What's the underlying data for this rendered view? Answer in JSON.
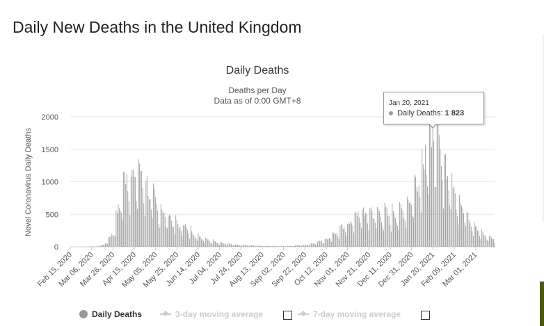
{
  "page": {
    "title": "Daily New Deaths in the United Kingdom"
  },
  "chart_data": {
    "type": "bar",
    "title": "Daily Deaths",
    "subtitle_lines": [
      "Deaths per Day",
      "Data as of 0:00 GMT+8"
    ],
    "ylabel": "Novel Coronavirus Daily Deaths",
    "xlabel": "",
    "ylim": [
      0,
      2000
    ],
    "y_ticks": [
      "0",
      "500",
      "1000",
      "1500",
      "2000"
    ],
    "grid": true,
    "color": "#999999",
    "x_tick_labels": [
      "Feb 15, 2020",
      "Mar 06, 2020",
      "Mar 26, 2020",
      "Apr 15, 2020",
      "May 05, 2020",
      "May 25, 2020",
      "Jun 14, 2020",
      "Jul 04, 2020",
      "Jul 24, 2020",
      "Aug 13, 2020",
      "Sep 02, 2020",
      "Sep 22, 2020",
      "Oct 12, 2020",
      "Nov 01, 2020",
      "Nov 21, 2020",
      "Dec 11, 2020",
      "Dec 31, 2020",
      "Jan 20, 2021",
      "Feb 09, 2021",
      "Mar 01, 2021"
    ],
    "x_start": "Feb 15, 2020",
    "x_end": "Mar 19, 2021",
    "anchors": [
      [
        "Feb 15, 2020",
        0
      ],
      [
        "Mar 01, 2020",
        0
      ],
      [
        "Mar 10, 2020",
        5
      ],
      [
        "Mar 18, 2020",
        30
      ],
      [
        "Mar 26, 2020",
        200
      ],
      [
        "Apr 01, 2020",
        600
      ],
      [
        "Apr 08, 2020",
        1050
      ],
      [
        "Apr 12, 2020",
        1000
      ],
      [
        "Apr 21, 2020",
        1100
      ],
      [
        "Apr 28, 2020",
        800
      ],
      [
        "May 05, 2020",
        650
      ],
      [
        "May 12, 2020",
        500
      ],
      [
        "May 19, 2020",
        420
      ],
      [
        "May 26, 2020",
        320
      ],
      [
        "Jun 02, 2020",
        300
      ],
      [
        "Jun 14, 2020",
        150
      ],
      [
        "Jun 25, 2020",
        100
      ],
      [
        "Jul 04, 2020",
        60
      ],
      [
        "Jul 20, 2020",
        30
      ],
      [
        "Aug 13, 2020",
        12
      ],
      [
        "Sep 02, 2020",
        8
      ],
      [
        "Sep 22, 2020",
        25
      ],
      [
        "Oct 01, 2020",
        55
      ],
      [
        "Oct 12, 2020",
        110
      ],
      [
        "Oct 22, 2020",
        220
      ],
      [
        "Nov 01, 2020",
        320
      ],
      [
        "Nov 10, 2020",
        480
      ],
      [
        "Nov 21, 2020",
        500
      ],
      [
        "Dec 01, 2020",
        480
      ],
      [
        "Dec 11, 2020",
        480
      ],
      [
        "Dec 20, 2020",
        480
      ],
      [
        "Dec 31, 2020",
        700
      ],
      [
        "Jan 08, 2021",
        1100
      ],
      [
        "Jan 14, 2021",
        1300
      ],
      [
        "Jan 20, 2021",
        1600
      ],
      [
        "Jan 27, 2021",
        1400
      ],
      [
        "Feb 03, 2021",
        1050
      ],
      [
        "Feb 09, 2021",
        800
      ],
      [
        "Feb 16, 2021",
        620
      ],
      [
        "Feb 23, 2021",
        430
      ],
      [
        "Mar 01, 2021",
        300
      ],
      [
        "Mar 08, 2021",
        180
      ],
      [
        "Mar 19, 2021",
        110
      ]
    ],
    "highlighted_points": [
      [
        "Jan 20, 2021",
        1823
      ],
      [
        "Jan 21, 2021",
        1630
      ],
      [
        "Jan 13, 2021",
        1570
      ],
      [
        "Jan 26, 2021",
        1725
      ],
      [
        "Apr 21, 2020",
        1166
      ],
      [
        "Apr 08, 2020",
        1120
      ]
    ],
    "tooltip": {
      "date": "Jan 20, 2021",
      "series": "Daily Deaths",
      "value": "1 823"
    }
  },
  "legend": {
    "items": [
      {
        "label": "Daily Deaths",
        "active": true
      },
      {
        "label": "3-day moving average",
        "active": false
      },
      {
        "label": "7-day moving average",
        "active": false
      }
    ]
  }
}
